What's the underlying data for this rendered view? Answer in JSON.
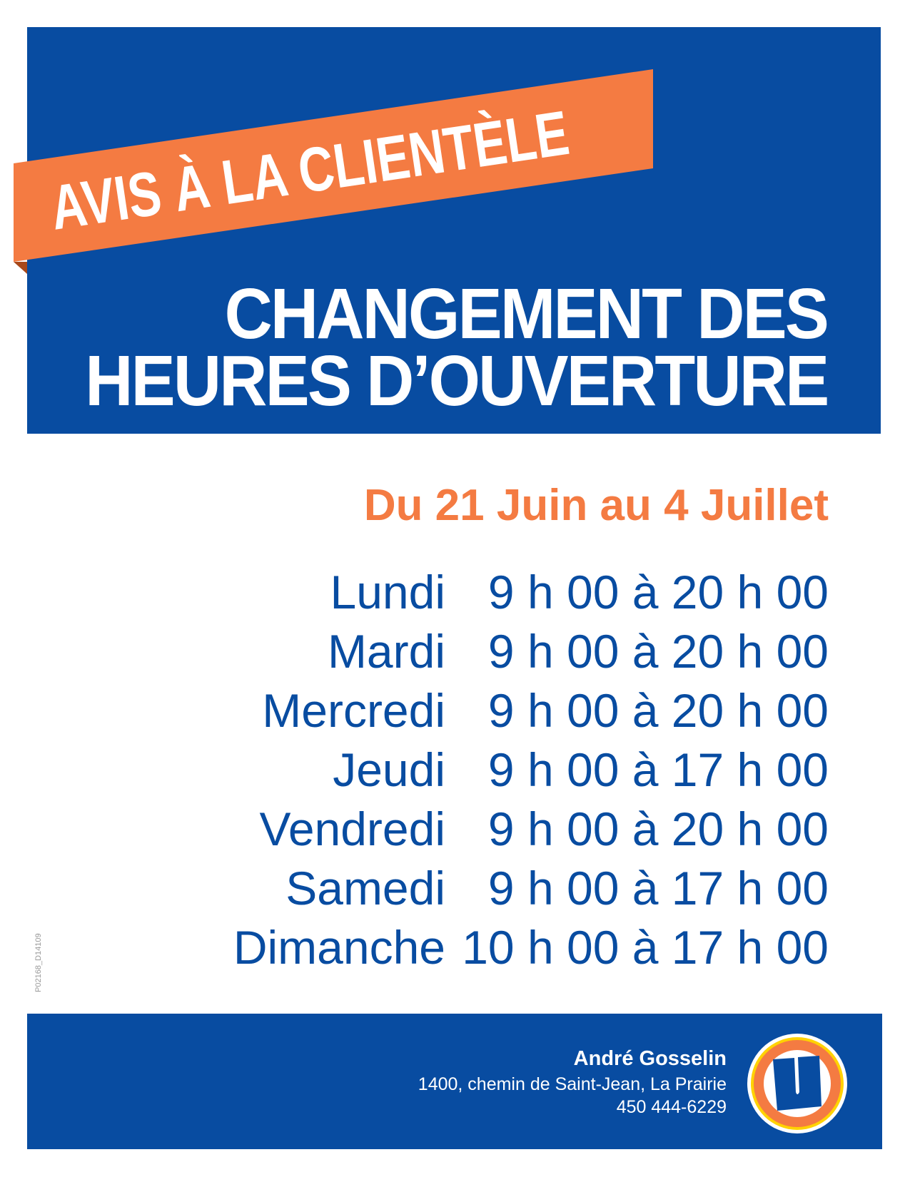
{
  "banner": {
    "text": "AVIS À LA CLIENTÈLE"
  },
  "title": {
    "line1": "CHANGEMENT DES",
    "line2": "HEURES D’OUVERTURE"
  },
  "period": "Du 21 Juin au 4 Juillet",
  "schedule": [
    {
      "day": "Lundi",
      "hours": "9 h 00 à 20 h 00"
    },
    {
      "day": "Mardi",
      "hours": "9 h 00 à 20 h 00"
    },
    {
      "day": "Mercredi",
      "hours": "9 h 00 à 20 h 00"
    },
    {
      "day": "Jeudi",
      "hours": "9 h 00 à 17 h 00"
    },
    {
      "day": "Vendredi",
      "hours": "9 h 00 à 20 h 00"
    },
    {
      "day": "Samedi",
      "hours": "9 h 00 à 17 h 00"
    },
    {
      "day": "Dimanche",
      "hours": "10 h 00 à 17 h 00"
    }
  ],
  "reference_code": "P02168_D14109",
  "store": {
    "name": "André Gosselin",
    "address": "1400, chemin de Saint-Jean, La Prairie",
    "phone": "450 444-6229",
    "logo_letter": "U"
  },
  "colors": {
    "blue": "#084ca1",
    "orange": "#f47b42",
    "yellow": "#ffd200"
  }
}
